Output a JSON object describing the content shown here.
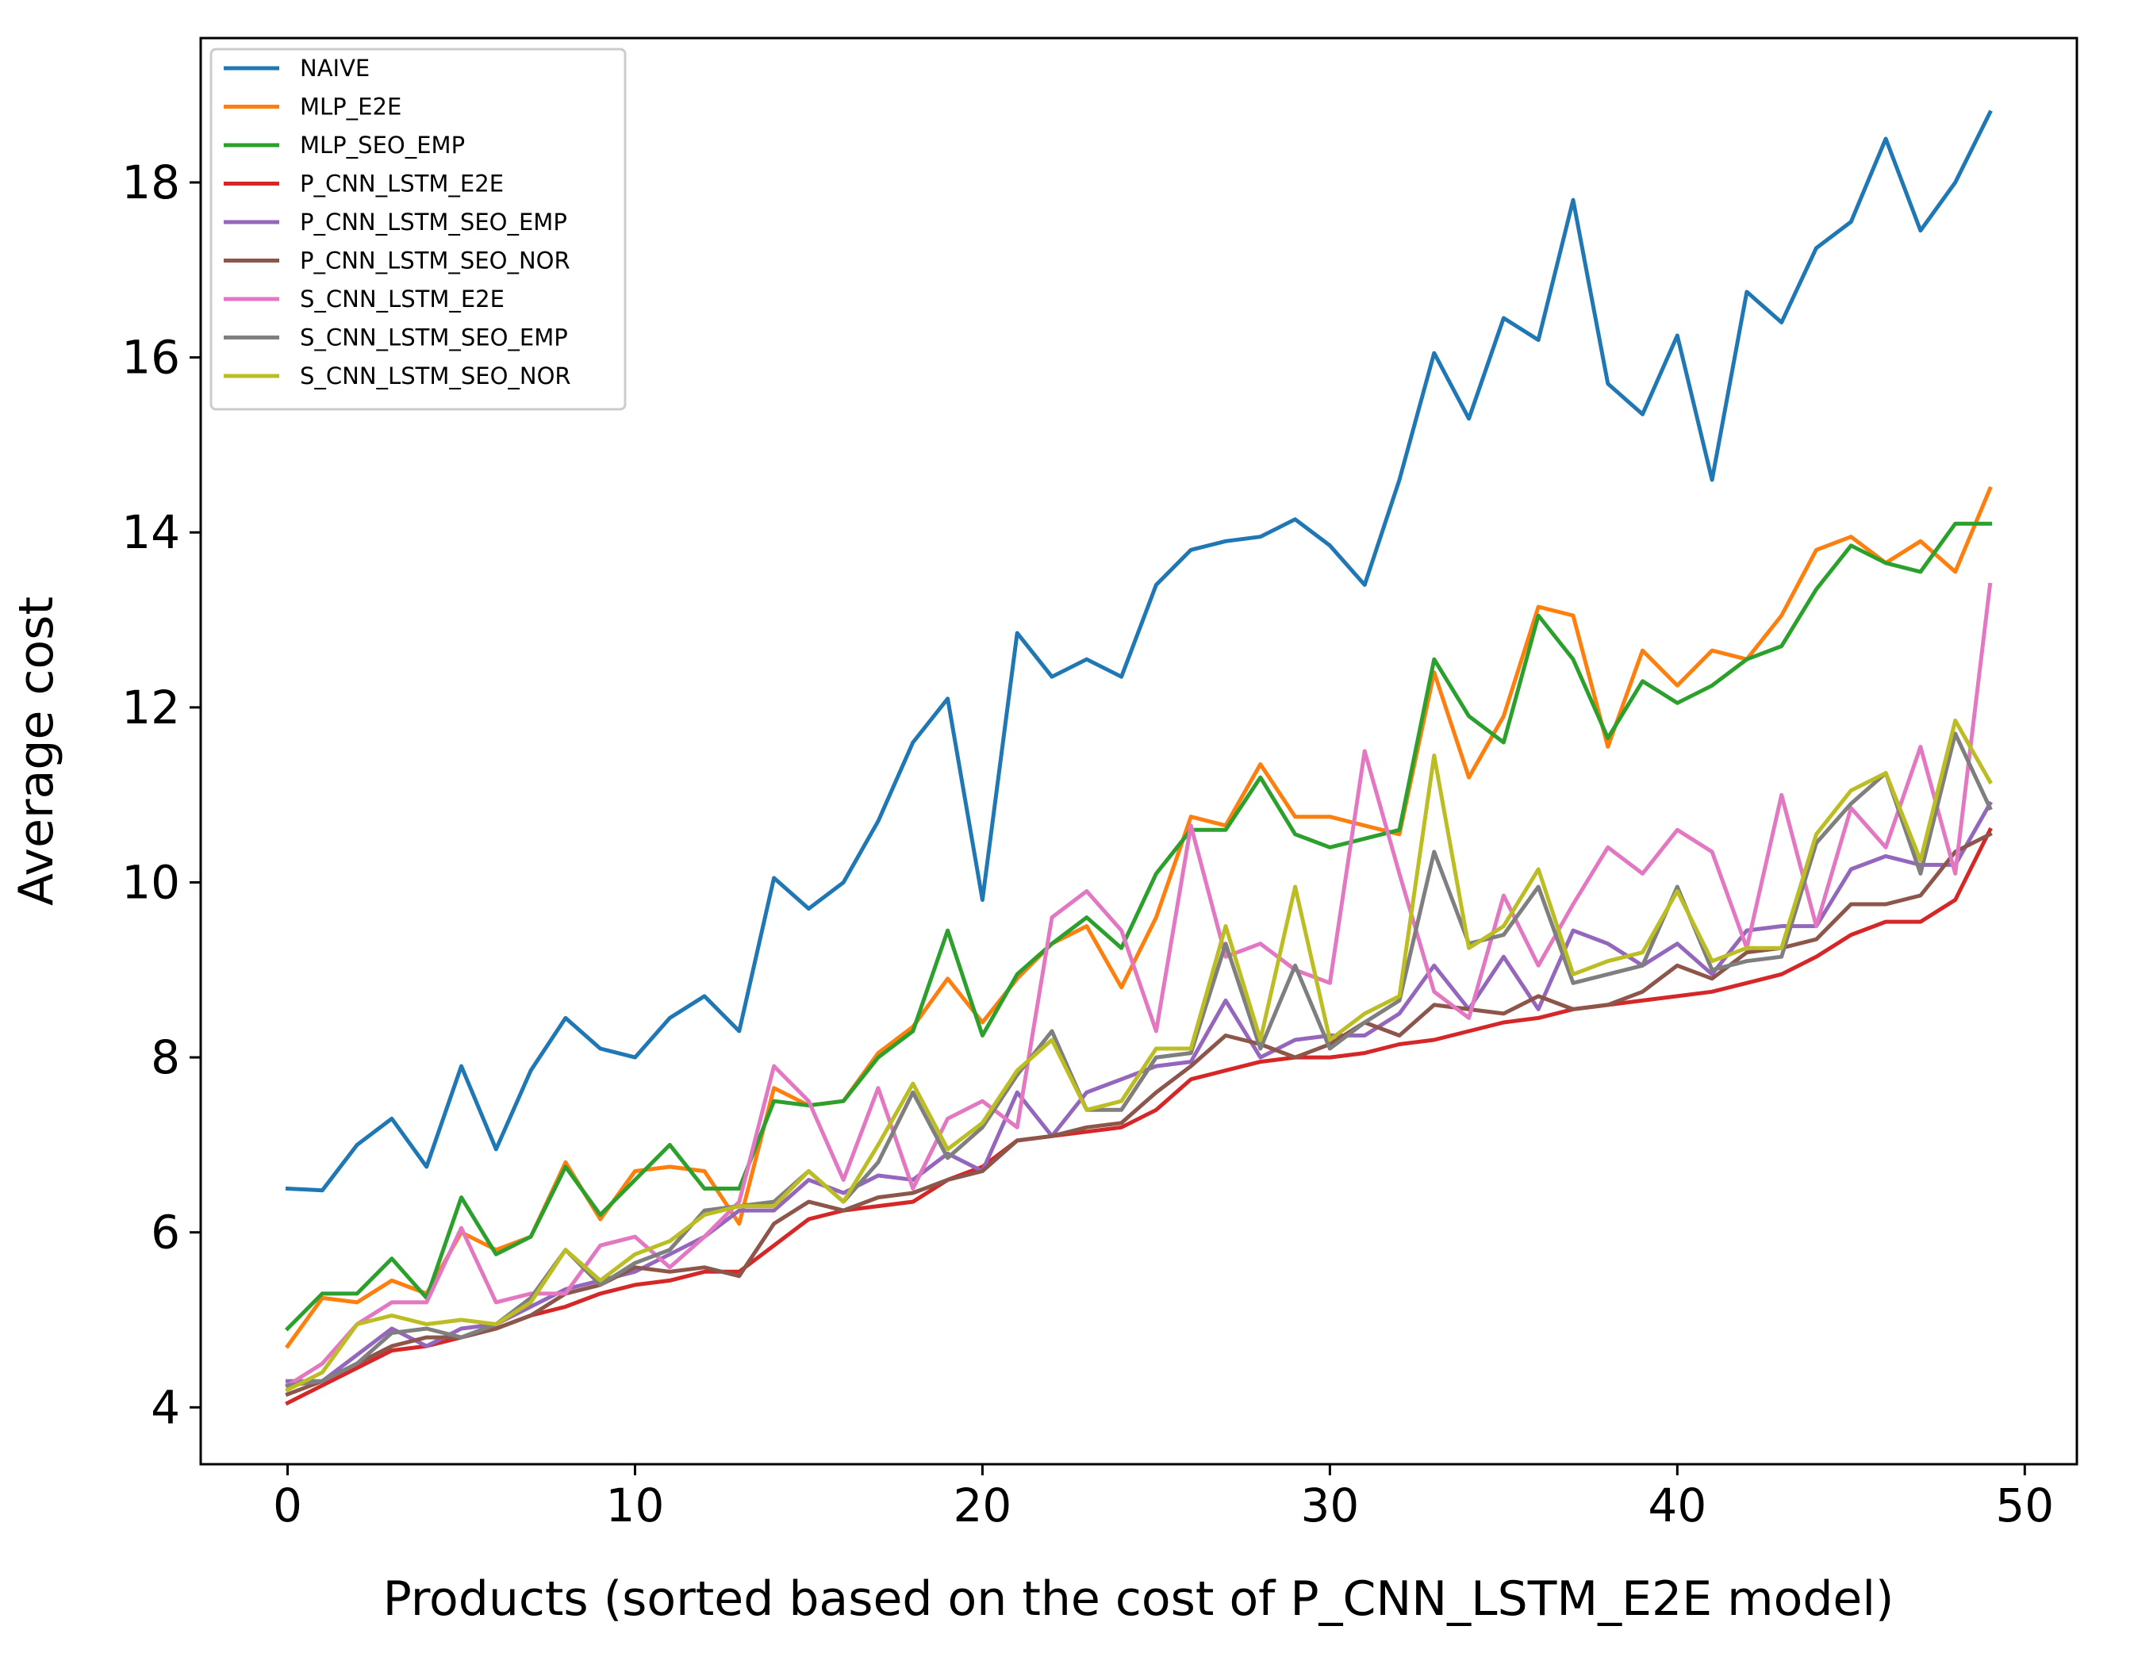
{
  "chart_data": {
    "type": "line",
    "title": "",
    "xlabel": "Products (sorted based on the cost of P_CNN_LSTM_E2E model)",
    "ylabel": "Average cost",
    "xlim": [
      -2.5,
      51.5
    ],
    "ylim": [
      3.35,
      19.65
    ],
    "xticks": [
      0,
      10,
      20,
      30,
      40,
      50
    ],
    "xtick_labels": [
      "0",
      "10",
      "20",
      "30",
      "40",
      "50"
    ],
    "yticks": [
      4,
      6,
      8,
      10,
      12,
      14,
      16,
      18
    ],
    "ytick_labels": [
      "4",
      "6",
      "8",
      "10",
      "12",
      "14",
      "16",
      "18"
    ],
    "grid": false,
    "legend_position": "top-left",
    "x": [
      0,
      1,
      2,
      3,
      4,
      5,
      6,
      7,
      8,
      9,
      10,
      11,
      12,
      13,
      14,
      15,
      16,
      17,
      18,
      19,
      20,
      21,
      22,
      23,
      24,
      25,
      26,
      27,
      28,
      29,
      30,
      31,
      32,
      33,
      34,
      35,
      36,
      37,
      38,
      39,
      40,
      41,
      42,
      43,
      44,
      45,
      46,
      47,
      48,
      49
    ],
    "series": [
      {
        "name": "NAIVE",
        "color": "#1f77b4",
        "values": [
          6.5,
          6.48,
          7.0,
          7.3,
          6.75,
          7.9,
          6.95,
          7.85,
          8.45,
          8.1,
          8.0,
          8.45,
          8.7,
          8.3,
          10.05,
          9.7,
          10.0,
          10.7,
          11.6,
          12.1,
          9.8,
          12.85,
          12.35,
          12.55,
          12.35,
          13.4,
          13.8,
          13.9,
          13.95,
          14.15,
          13.85,
          13.4,
          14.6,
          16.05,
          15.3,
          16.45,
          16.2,
          17.8,
          15.7,
          15.35,
          16.25,
          14.6,
          16.75,
          16.4,
          17.25,
          17.55,
          18.5,
          17.45,
          18.0,
          18.8
        ]
      },
      {
        "name": "MLP_E2E",
        "color": "#ff7f0e",
        "values": [
          4.7,
          5.25,
          5.2,
          5.45,
          5.3,
          6.0,
          5.8,
          5.95,
          6.8,
          6.15,
          6.7,
          6.75,
          6.7,
          6.1,
          7.65,
          7.45,
          7.5,
          8.05,
          8.35,
          8.9,
          8.4,
          8.9,
          9.3,
          9.5,
          8.8,
          9.6,
          10.75,
          10.65,
          11.35,
          10.75,
          10.75,
          10.65,
          10.55,
          12.4,
          11.2,
          11.9,
          13.15,
          13.05,
          11.55,
          12.65,
          12.25,
          12.65,
          12.55,
          13.05,
          13.8,
          13.95,
          13.65,
          13.9,
          13.55,
          14.5
        ]
      },
      {
        "name": "MLP_SEO_EMP",
        "color": "#2ca02c",
        "values": [
          4.9,
          5.3,
          5.3,
          5.7,
          5.25,
          6.4,
          5.75,
          5.95,
          6.75,
          6.2,
          6.6,
          7.0,
          6.5,
          6.5,
          7.5,
          7.45,
          7.5,
          8.0,
          8.3,
          9.45,
          8.25,
          8.95,
          9.3,
          9.6,
          9.25,
          10.1,
          10.6,
          10.6,
          11.2,
          10.55,
          10.4,
          10.5,
          10.6,
          12.55,
          11.9,
          11.6,
          13.05,
          12.55,
          11.65,
          12.3,
          12.05,
          12.25,
          12.55,
          12.7,
          13.35,
          13.85,
          13.65,
          13.55,
          14.1,
          14.1
        ]
      },
      {
        "name": "P_CNN_LSTM_E2E",
        "color": "#d62728",
        "values": [
          4.05,
          4.25,
          4.45,
          4.65,
          4.7,
          4.8,
          4.9,
          5.05,
          5.15,
          5.3,
          5.4,
          5.45,
          5.55,
          5.55,
          5.85,
          6.15,
          6.25,
          6.3,
          6.35,
          6.6,
          6.75,
          7.05,
          7.1,
          7.15,
          7.2,
          7.4,
          7.75,
          7.85,
          7.95,
          8.0,
          8.0,
          8.05,
          8.15,
          8.2,
          8.3,
          8.4,
          8.45,
          8.55,
          8.6,
          8.65,
          8.7,
          8.75,
          8.85,
          8.95,
          9.15,
          9.4,
          9.55,
          9.55,
          9.8,
          10.6
        ]
      },
      {
        "name": "P_CNN_LSTM_SEO_EMP",
        "color": "#9467bd",
        "values": [
          4.3,
          4.3,
          4.6,
          4.9,
          4.7,
          4.9,
          4.95,
          5.15,
          5.35,
          5.45,
          5.55,
          5.75,
          5.95,
          6.25,
          6.25,
          6.6,
          6.45,
          6.65,
          6.6,
          6.9,
          6.7,
          7.6,
          7.1,
          7.6,
          7.75,
          7.9,
          7.95,
          8.65,
          8.0,
          8.2,
          8.25,
          8.25,
          8.5,
          9.05,
          8.55,
          9.15,
          8.55,
          9.45,
          9.3,
          9.05,
          9.3,
          8.95,
          9.45,
          9.5,
          9.5,
          10.15,
          10.3,
          10.2,
          10.2,
          10.9
        ]
      },
      {
        "name": "P_CNN_LSTM_SEO_NOR",
        "color": "#8c564b",
        "values": [
          4.15,
          4.3,
          4.5,
          4.7,
          4.8,
          4.8,
          4.9,
          5.05,
          5.3,
          5.4,
          5.6,
          5.55,
          5.6,
          5.5,
          6.1,
          6.35,
          6.25,
          6.4,
          6.45,
          6.6,
          6.7,
          7.05,
          7.1,
          7.2,
          7.25,
          7.6,
          7.9,
          8.25,
          8.15,
          8.0,
          8.15,
          8.4,
          8.25,
          8.6,
          8.55,
          8.5,
          8.7,
          8.55,
          8.6,
          8.75,
          9.05,
          8.9,
          9.2,
          9.25,
          9.35,
          9.75,
          9.75,
          9.85,
          10.35,
          10.55
        ]
      },
      {
        "name": "S_CNN_LSTM_E2E",
        "color": "#e377c2",
        "values": [
          4.25,
          4.5,
          4.95,
          5.2,
          5.2,
          6.05,
          5.2,
          5.3,
          5.3,
          5.85,
          5.95,
          5.6,
          5.95,
          6.35,
          7.9,
          7.5,
          6.6,
          7.65,
          6.5,
          7.3,
          7.5,
          7.2,
          9.6,
          9.9,
          9.45,
          8.3,
          10.65,
          9.15,
          9.3,
          9.0,
          8.85,
          11.5,
          10.1,
          8.75,
          8.45,
          9.85,
          9.05,
          9.75,
          10.4,
          10.1,
          10.6,
          10.35,
          9.25,
          11.0,
          9.5,
          10.85,
          10.4,
          11.55,
          10.1,
          13.4
        ]
      },
      {
        "name": "S_CNN_LSTM_SEO_EMP",
        "color": "#7f7f7f",
        "values": [
          4.25,
          4.3,
          4.5,
          4.85,
          4.9,
          4.8,
          4.95,
          5.25,
          5.8,
          5.4,
          5.65,
          5.8,
          6.25,
          6.3,
          6.35,
          6.7,
          6.35,
          6.8,
          7.6,
          6.85,
          7.2,
          7.8,
          8.3,
          7.4,
          7.4,
          8.0,
          8.05,
          9.3,
          8.1,
          9.05,
          8.1,
          8.4,
          8.65,
          10.35,
          9.3,
          9.4,
          9.95,
          8.85,
          8.95,
          9.05,
          9.95,
          9.0,
          9.1,
          9.15,
          10.45,
          10.9,
          11.25,
          10.1,
          11.7,
          10.85
        ]
      },
      {
        "name": "S_CNN_LSTM_SEO_NOR",
        "color": "#bcbd22",
        "values": [
          4.2,
          4.4,
          4.95,
          5.05,
          4.95,
          5.0,
          4.95,
          5.2,
          5.8,
          5.45,
          5.75,
          5.9,
          6.2,
          6.3,
          6.3,
          6.7,
          6.35,
          7.0,
          7.7,
          6.95,
          7.25,
          7.85,
          8.2,
          7.4,
          7.5,
          8.1,
          8.1,
          9.5,
          8.2,
          9.95,
          8.2,
          8.5,
          8.7,
          11.45,
          9.25,
          9.5,
          10.15,
          8.95,
          9.1,
          9.2,
          9.9,
          9.1,
          9.25,
          9.25,
          10.55,
          11.05,
          11.25,
          10.25,
          11.85,
          11.15
        ]
      }
    ]
  }
}
